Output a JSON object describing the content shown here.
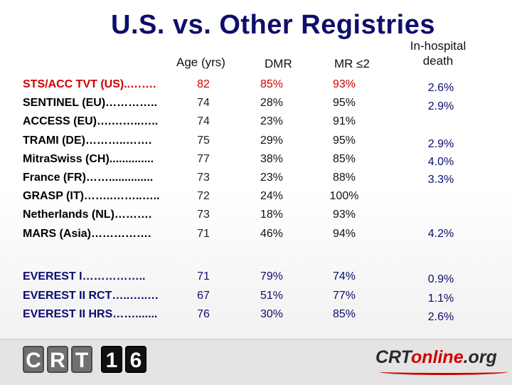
{
  "slide": {
    "title": "U.S. vs. Other Registries",
    "headers": {
      "age": "Age (yrs)",
      "dmr": "DMR",
      "mr": "MR ≤2",
      "hosp_line1": "In-hospital",
      "hosp_line2": "death"
    },
    "registries": [
      {
        "label": "STS/ACC TVT (US)..…….",
        "age": "82",
        "dmr": "85%",
        "mr": "93%",
        "hosp": "2.6%"
      },
      {
        "label": "SENTINEL (EU)…………..",
        "age": "74",
        "dmr": "28%",
        "mr": "95%",
        "hosp": "2.9%"
      },
      {
        "label": "ACCESS (EU)….……..…..",
        "age": "74",
        "dmr": "23%",
        "mr": "91%",
        "hosp": ""
      },
      {
        "label": "TRAMI (DE)………..…….",
        "age": "75",
        "dmr": "29%",
        "mr": "95%",
        "hosp": "2.9%"
      },
      {
        "label": "Mitra​Swiss (CH)..............",
        "age": "77",
        "dmr": "38%",
        "mr": "85%",
        "hosp": "4.0%"
      },
      {
        "label": "France (FR)……..............",
        "age": "73",
        "dmr": "23%",
        "mr": "88%",
        "hosp": "3.3%"
      },
      {
        "label": "GRASP (IT)……..……..…..",
        "age": "72",
        "dmr": "24%",
        "mr": "100%",
        "hosp": ""
      },
      {
        "label": "Netherlands (NL)……….",
        "age": "73",
        "dmr": "18%",
        "mr": "93%",
        "hosp": ""
      },
      {
        "label": "MARS (Asia)…………….",
        "age": "71",
        "dmr": "46%",
        "mr": "94%",
        "hosp": "4.2%"
      }
    ],
    "everest": [
      {
        "label": "EVEREST I……………..",
        "age": "71",
        "dmr": "79%",
        "mr": "74%",
        "hosp": "0.9%"
      },
      {
        "label": "EVEREST II RCT…..…..…",
        "age": "67",
        "dmr": "51%",
        "mr": "77%",
        "hosp": "1.1%"
      },
      {
        "label": "EVEREST II HRS…….......",
        "age": "76",
        "dmr": "30%",
        "mr": "85%",
        "hosp": "2.6%"
      }
    ]
  },
  "footer": {
    "crt_logo_letters": [
      "C",
      "R",
      "T",
      "1",
      "6"
    ],
    "crtonline_prefix": "CRT",
    "crtonline_middle": "online",
    "crtonline_suffix": ".org"
  },
  "colors": {
    "title": "#0e0e6b",
    "us_row": "#d00000",
    "everest_rows": "#0b0b70",
    "footer_bar": "#e4e4e4"
  }
}
